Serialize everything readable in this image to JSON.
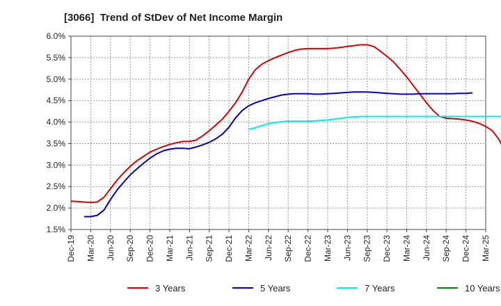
{
  "chart_data": {
    "type": "line",
    "title": "[3066]  Trend of StDev of Net Income Margin",
    "xlabel": "",
    "ylabel": "",
    "ylim": [
      1.5,
      6.0
    ],
    "y_ticks": [
      "1.5%",
      "2.0%",
      "2.5%",
      "3.0%",
      "3.5%",
      "4.0%",
      "4.5%",
      "5.0%",
      "5.5%",
      "6.0%"
    ],
    "x_ticks": [
      "Dec-19",
      "Mar-20",
      "Jun-20",
      "Sep-20",
      "Dec-20",
      "Mar-21",
      "Jun-21",
      "Sep-21",
      "Dec-21",
      "Mar-22",
      "Jun-22",
      "Sep-22",
      "Dec-22",
      "Mar-23",
      "Jun-23",
      "Sep-23",
      "Dec-23",
      "Mar-24",
      "Jun-24",
      "Sep-24",
      "Dec-24",
      "Mar-25"
    ],
    "grid": true,
    "legend_position": "bottom",
    "series": [
      {
        "name": "3 Years",
        "color": "#dd0000",
        "start_index": 0,
        "values": [
          2.16,
          2.15,
          2.14,
          2.13,
          2.14,
          2.25,
          2.45,
          2.65,
          2.82,
          2.97,
          3.1,
          3.2,
          3.3,
          3.37,
          3.43,
          3.48,
          3.52,
          3.55,
          3.55,
          3.58,
          3.68,
          3.8,
          3.93,
          4.07,
          4.25,
          4.45,
          4.7,
          5.0,
          5.22,
          5.35,
          5.43,
          5.5,
          5.56,
          5.62,
          5.67,
          5.7,
          5.71,
          5.71,
          5.71,
          5.71,
          5.72,
          5.74,
          5.76,
          5.78,
          5.8,
          5.8,
          5.76,
          5.65,
          5.53,
          5.4,
          5.23,
          5.05,
          4.85,
          4.65,
          4.45,
          4.27,
          4.13,
          4.09,
          4.08,
          4.07,
          4.05,
          4.02,
          3.97,
          3.9,
          3.8,
          3.6,
          3.3
        ]
      },
      {
        "name": "5 Years",
        "color": "#0000cc",
        "start_index": 2,
        "values": [
          1.8,
          1.8,
          1.83,
          1.95,
          2.2,
          2.42,
          2.6,
          2.77,
          2.91,
          3.04,
          3.16,
          3.26,
          3.33,
          3.37,
          3.39,
          3.39,
          3.38,
          3.42,
          3.47,
          3.53,
          3.61,
          3.72,
          3.88,
          4.1,
          4.27,
          4.38,
          4.45,
          4.5,
          4.55,
          4.59,
          4.63,
          4.65,
          4.66,
          4.66,
          4.66,
          4.65,
          4.65,
          4.66,
          4.67,
          4.68,
          4.69,
          4.7,
          4.7,
          4.7,
          4.69,
          4.68,
          4.67,
          4.66,
          4.65,
          4.65,
          4.65,
          4.66,
          4.66,
          4.66,
          4.66,
          4.66,
          4.66,
          4.67,
          4.67,
          4.68
        ]
      },
      {
        "name": "7 Years",
        "color": "#00eeee",
        "start_index": 27,
        "values": [
          3.83,
          3.87,
          3.92,
          3.96,
          3.99,
          4.01,
          4.02,
          4.02,
          4.02,
          4.02,
          4.03,
          4.04,
          4.05,
          4.07,
          4.09,
          4.11,
          4.12,
          4.13,
          4.13,
          4.13,
          4.13,
          4.13,
          4.13,
          4.13,
          4.13,
          4.13,
          4.13,
          4.13,
          4.13,
          4.13,
          4.13,
          4.13,
          4.13,
          4.13,
          4.13,
          4.13,
          4.13,
          4.13,
          4.13,
          4.13
        ]
      },
      {
        "name": "10 Years",
        "color": "#008800",
        "start_index": 0,
        "values": []
      }
    ]
  }
}
